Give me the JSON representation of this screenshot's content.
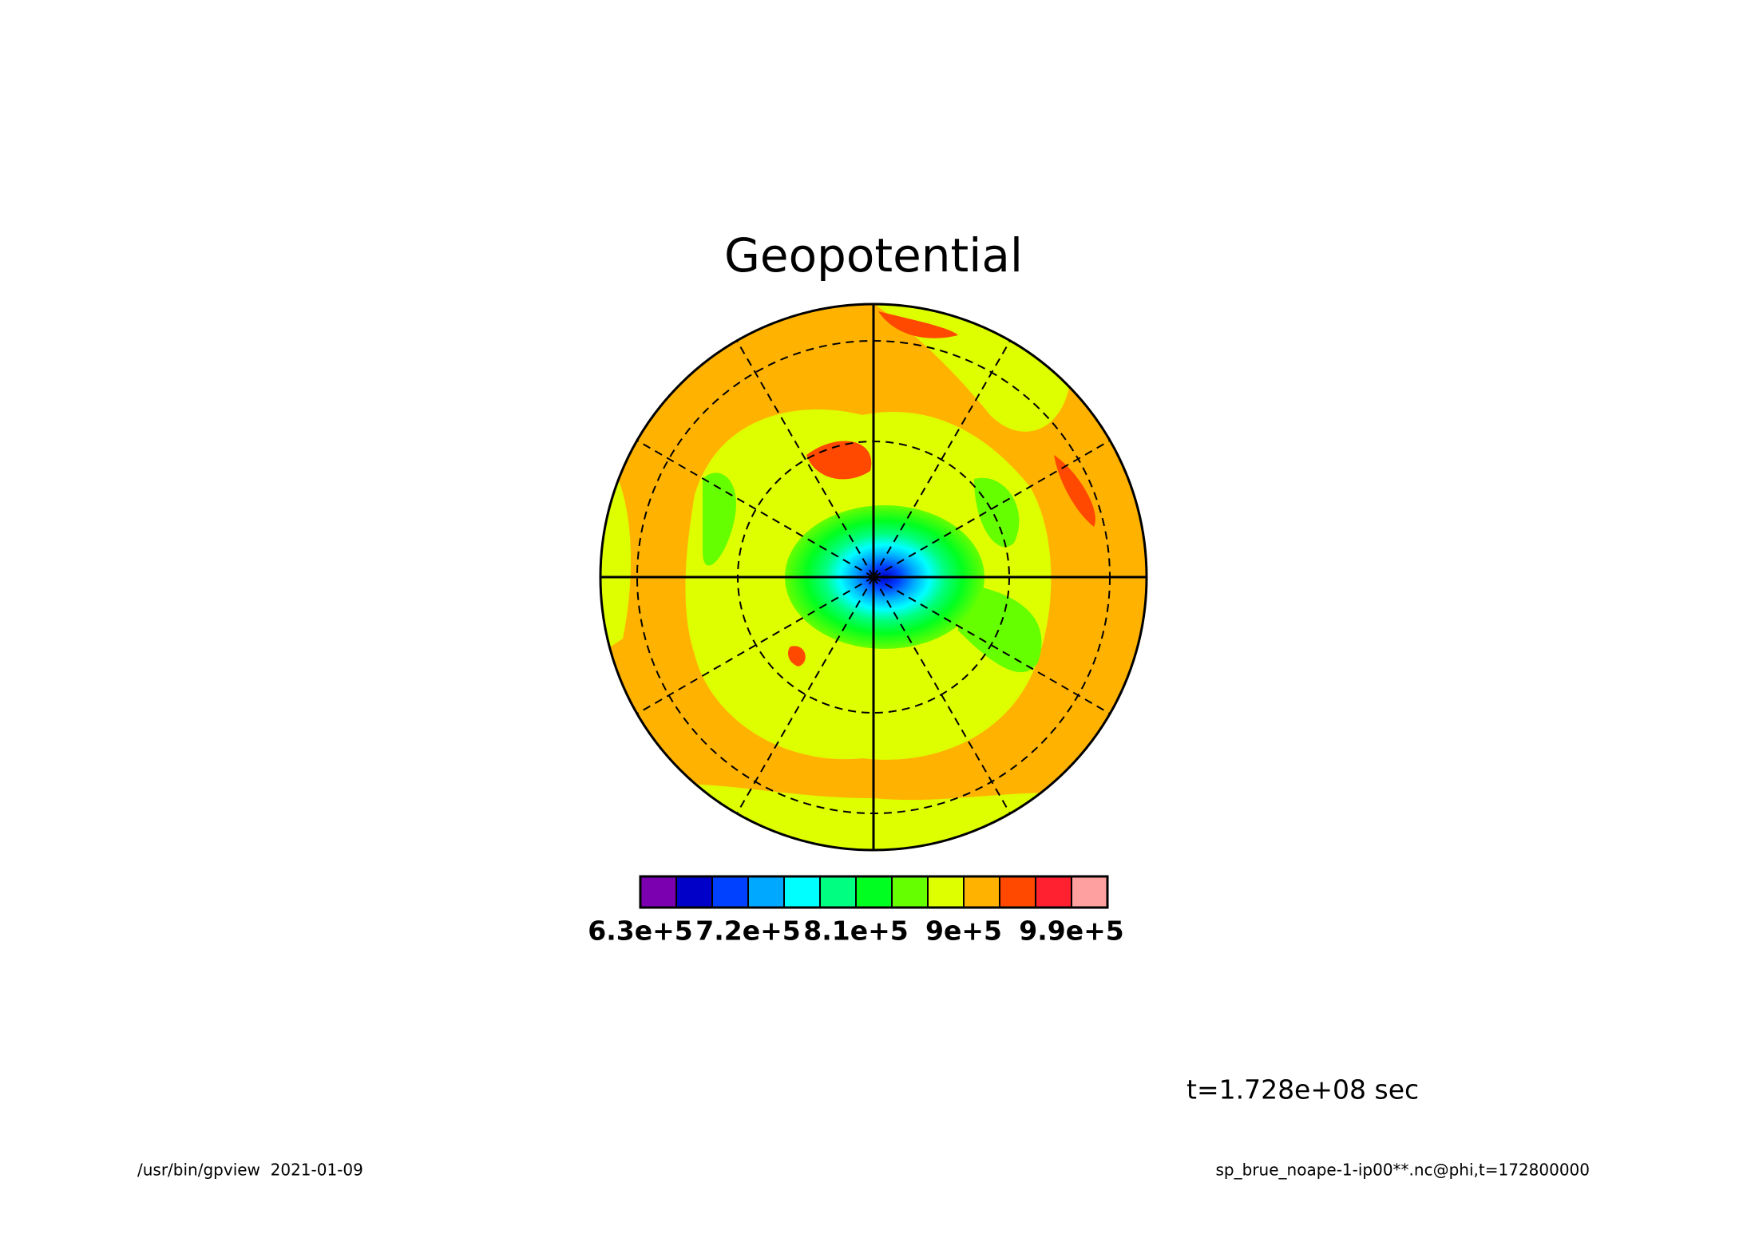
{
  "chart_data": {
    "type": "contour",
    "title": "Geopotential",
    "levels": [
      630000,
      660000,
      690000,
      720000,
      750000,
      780000,
      810000,
      840000,
      870000,
      900000,
      930000,
      960000,
      990000,
      1020000
    ],
    "colors": [
      "#7a00b0",
      "#0000c8",
      "#0040ff",
      "#00a8ff",
      "#00ffff",
      "#00ff80",
      "#00ff20",
      "#66ff00",
      "#ddff00",
      "#ffb300",
      "#ff4800",
      "#ff2030",
      "#ffa0a0"
    ],
    "xlim": [
      630000,
      1020000
    ],
    "xticks": [
      {
        "value": 630000,
        "label": "6.3e+5"
      },
      {
        "value": 720000,
        "label": "7.2e+5"
      },
      {
        "value": 810000,
        "label": "8.1e+5"
      },
      {
        "value": 900000,
        "label": "9e+5"
      },
      {
        "value": 990000,
        "label": "9.9e+5"
      }
    ],
    "time_label": "t=1.728e+08 sec",
    "footer_left": "/usr/bin/gpview  2021-01-09",
    "footer_right": "sp_brue_noape-1-ip00**.nc@phi,t=172800000"
  }
}
